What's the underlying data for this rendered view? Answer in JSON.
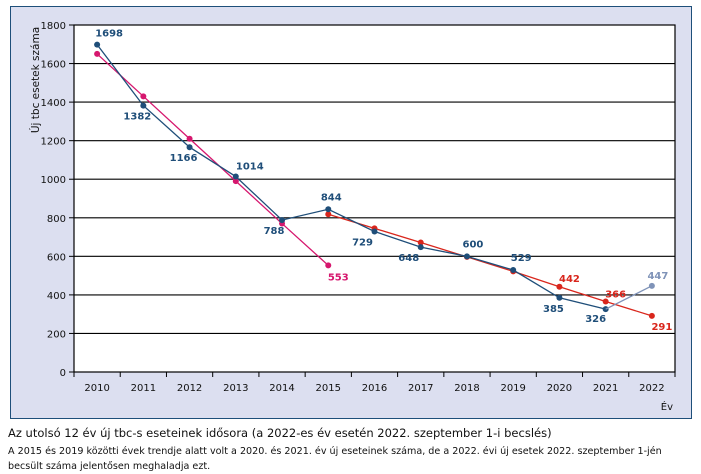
{
  "chart_data": {
    "type": "line",
    "title": "",
    "xlabel": "Év",
    "ylabel": "Új tbc esetek száma",
    "ylim": [
      0,
      1800
    ],
    "yticks": [
      0,
      200,
      400,
      600,
      800,
      1000,
      1200,
      1400,
      1600,
      1800
    ],
    "categories": [
      "2010",
      "2011",
      "2012",
      "2013",
      "2014",
      "2015",
      "2016",
      "2017",
      "2018",
      "2019",
      "2020",
      "2021",
      "2022"
    ],
    "grid": true,
    "series": [
      {
        "name": "actual",
        "color": "#1f4e79",
        "x": [
          "2010",
          "2011",
          "2012",
          "2013",
          "2014",
          "2015",
          "2016",
          "2017",
          "2018",
          "2019",
          "2020",
          "2021"
        ],
        "values": [
          1698,
          1382,
          1166,
          1014,
          788,
          844,
          729,
          648,
          600,
          529,
          385,
          326
        ],
        "labels": [
          "1698",
          "1382",
          "1166",
          "1014",
          "788",
          "844",
          "729",
          "648",
          "600",
          "529",
          "385",
          "326"
        ]
      },
      {
        "name": "estimate-2022",
        "color": "#7f93b8",
        "x": [
          "2021",
          "2022"
        ],
        "values": [
          326,
          447
        ],
        "labels": [
          "",
          "447"
        ]
      },
      {
        "name": "trend-2010-2015",
        "color": "#d6176e",
        "x": [
          "2010",
          "2011",
          "2012",
          "2013",
          "2014",
          "2015"
        ],
        "values": [
          1650,
          1430,
          1210,
          990,
          770,
          553
        ],
        "labels": [
          "",
          "",
          "",
          "",
          "",
          "553"
        ]
      },
      {
        "name": "trend-2015-2019",
        "color": "#d9261c",
        "x": [
          "2015",
          "2016",
          "2017",
          "2018",
          "2019",
          "2020",
          "2021",
          "2022"
        ],
        "values": [
          818,
          745,
          672,
          597,
          522,
          442,
          366,
          291
        ],
        "labels": [
          "",
          "",
          "",
          "",
          "",
          "442",
          "366",
          "291"
        ]
      }
    ]
  },
  "caption": {
    "title": "Az utolsó 12 év új tbc-s eseteinek idősora (a 2022-es év esetén 2022. szeptember 1-i becslés)",
    "body": "A 2015 és 2019 közötti évek trendje alatt volt a 2020. és 2021. év új eseteinek száma, de a 2022. évi új esetek 2022. szeptember 1-jén becsült száma jelentősen meghaladja ezt."
  }
}
